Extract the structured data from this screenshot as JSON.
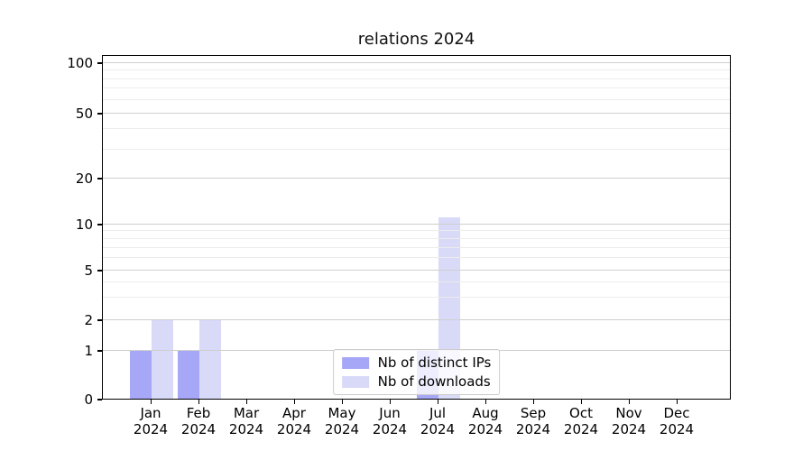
{
  "chart_data": {
    "type": "bar",
    "title": "relations 2024",
    "categories": [
      "Jan",
      "Feb",
      "Mar",
      "Apr",
      "May",
      "Jun",
      "Jul",
      "Aug",
      "Sep",
      "Oct",
      "Nov",
      "Dec"
    ],
    "category_year": "2024",
    "series": [
      {
        "name": "Nb of distinct IPs",
        "color": "#a7a7f7",
        "values": [
          1,
          1,
          0,
          0,
          0,
          0,
          1,
          0,
          0,
          0,
          0,
          0
        ]
      },
      {
        "name": "Nb of downloads",
        "color": "#d9d9f8",
        "values": [
          2,
          2,
          0,
          0,
          0,
          0,
          11,
          0,
          0,
          0,
          0,
          0
        ]
      }
    ],
    "xlabel": "",
    "ylabel": "",
    "yscale": "symlog",
    "yticks": [
      0,
      1,
      2,
      5,
      10,
      20,
      50,
      100
    ],
    "minor_gridlines": [
      3,
      4,
      6,
      7,
      8,
      9,
      30,
      40,
      60,
      70,
      80,
      90
    ],
    "ylim": [
      0,
      112
    ],
    "grid": "horizontal",
    "legend_position": "lower center",
    "bar_colors": {
      "distinct_ips": "#a7a7f7",
      "downloads": "#d9d9f8"
    }
  }
}
